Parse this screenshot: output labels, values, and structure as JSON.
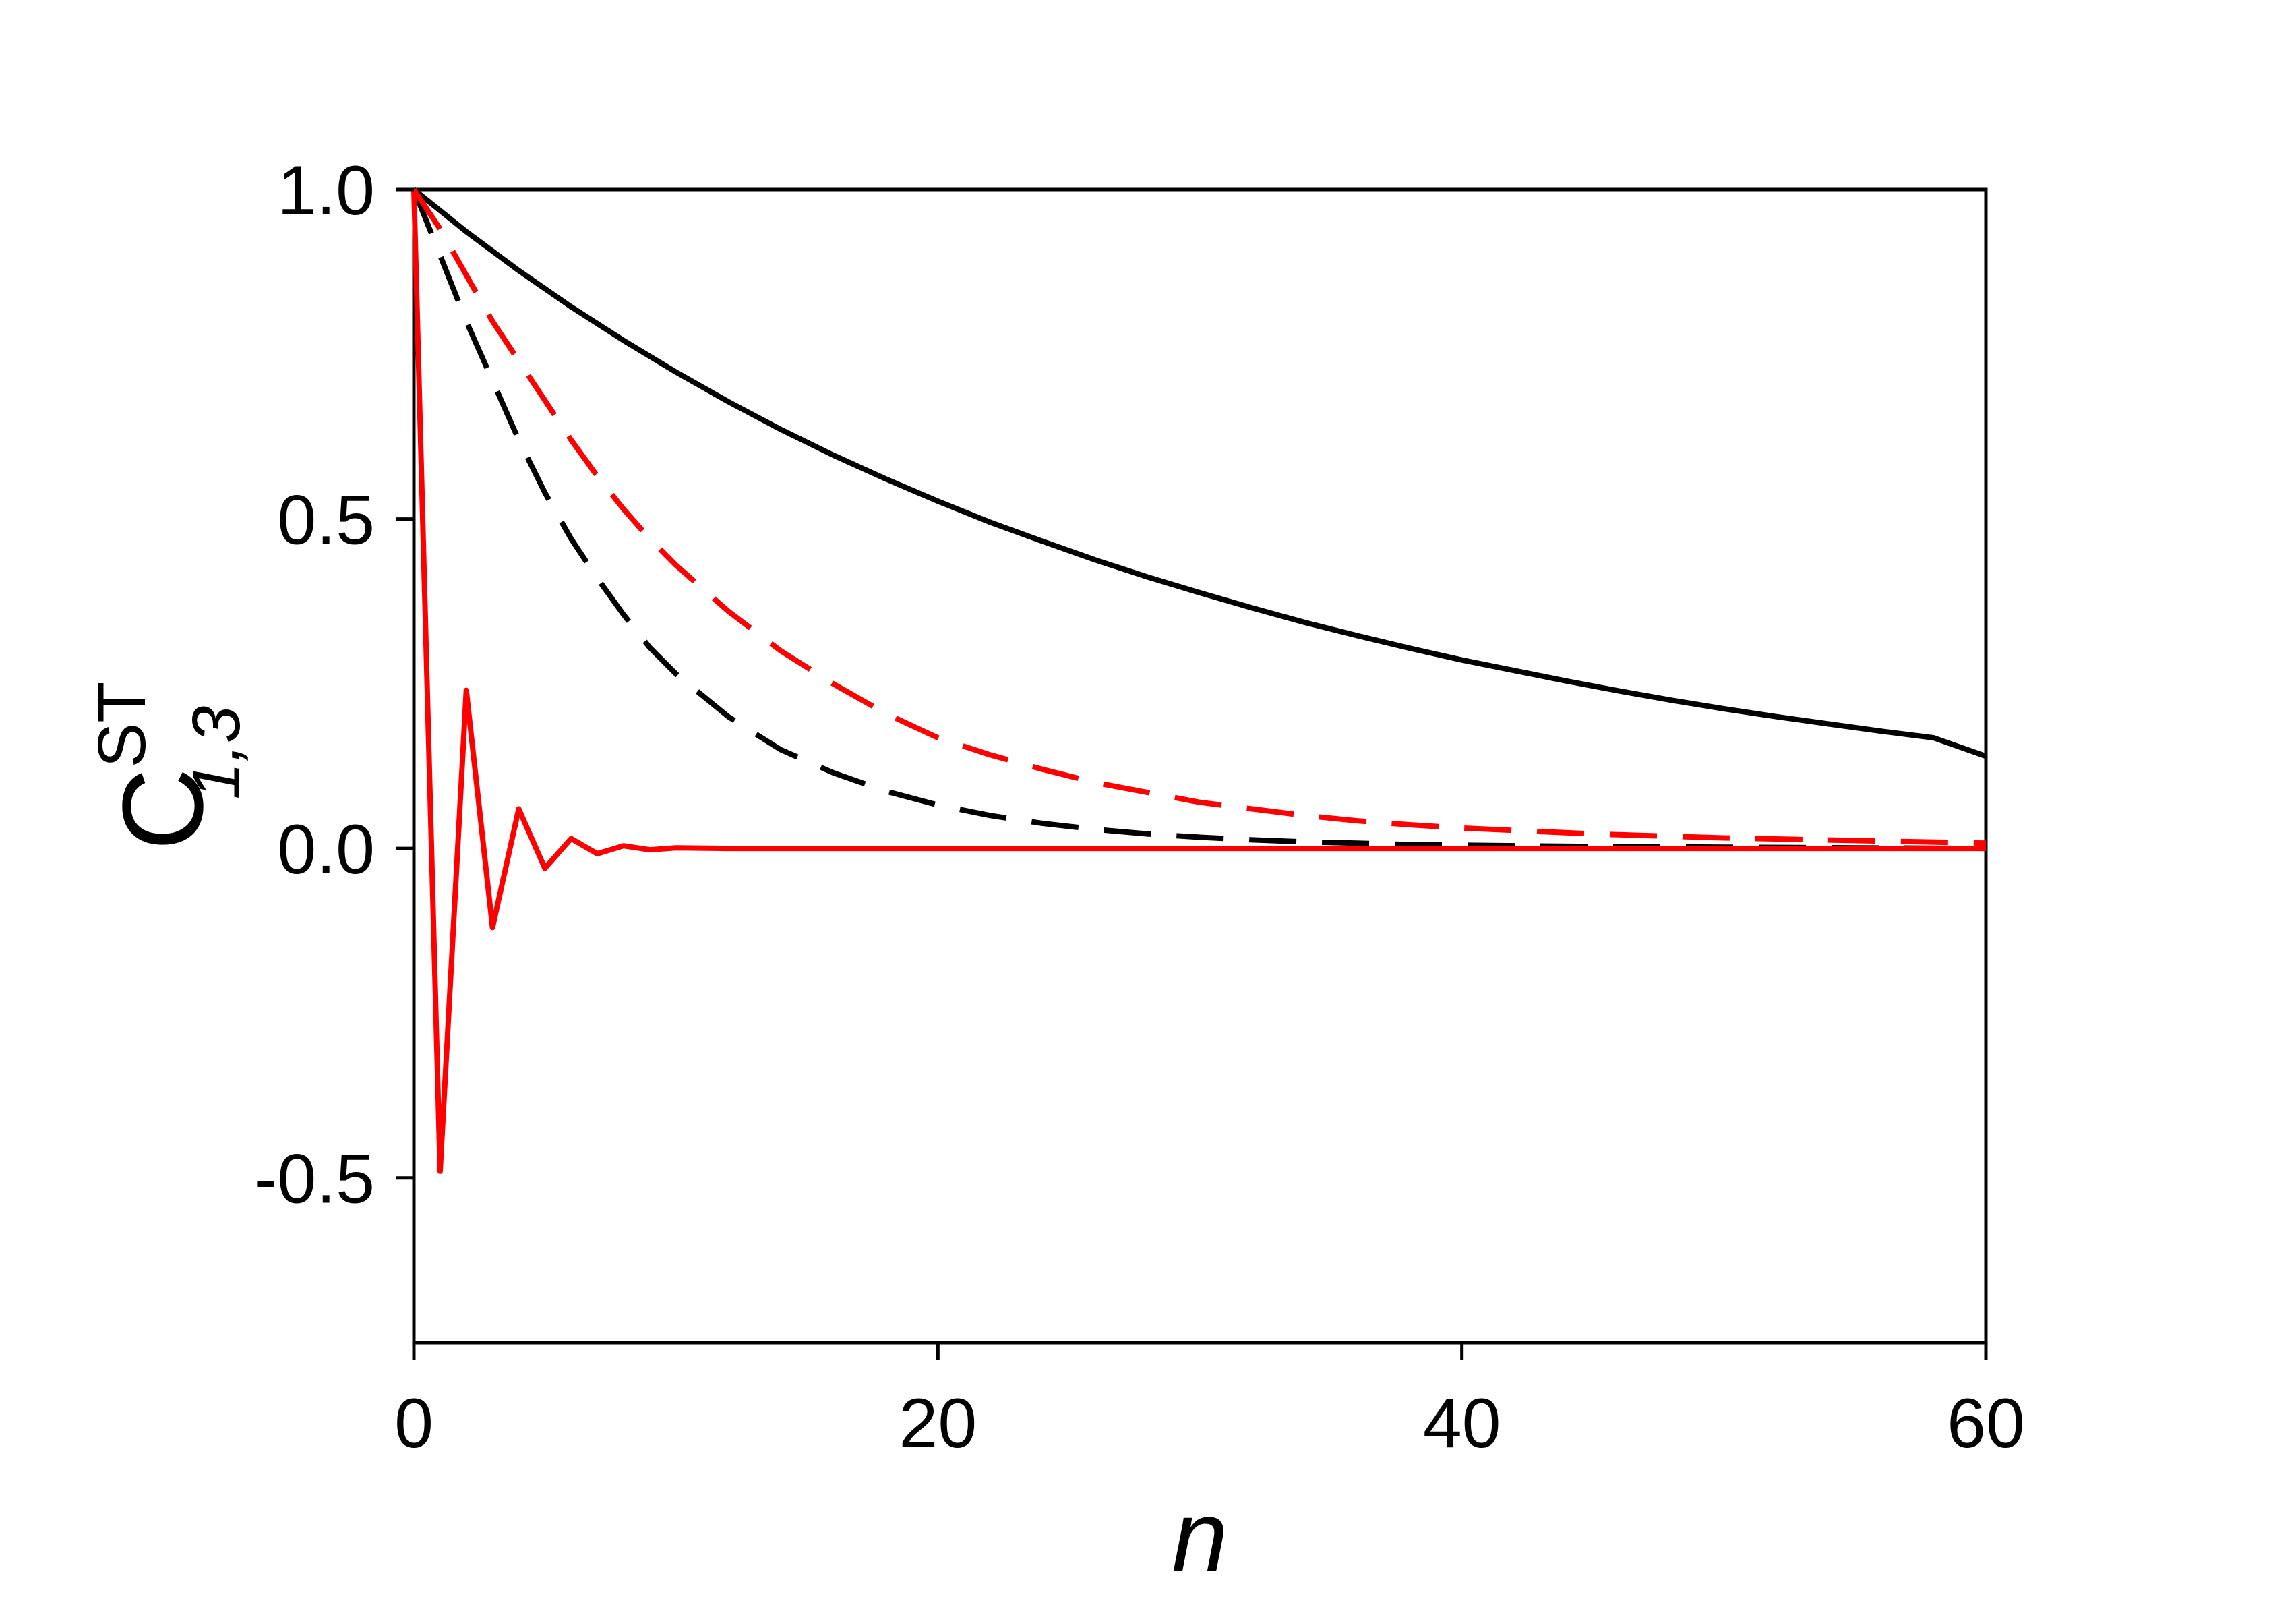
{
  "chart_data": {
    "type": "line",
    "xlabel": "n",
    "ylabel": {
      "base": "C",
      "sup": "ST",
      "sub": "1,3"
    },
    "xlim": [
      0,
      60
    ],
    "ylim": [
      -0.75,
      1.0
    ],
    "xticks": [
      0,
      20,
      40,
      60
    ],
    "xtick_labels": [
      "0",
      "20",
      "40",
      "60"
    ],
    "yticks": [
      1.0,
      0.5,
      0.0,
      -0.5
    ],
    "ytick_labels": [
      "1.0",
      "0.5",
      "0.0",
      "-0.5"
    ],
    "grid": false,
    "legend": "none",
    "series": [
      {
        "color": "#000000",
        "style": "solid",
        "x": [
          0,
          2,
          4,
          6,
          8,
          10,
          12,
          14,
          16,
          18,
          20,
          22,
          24,
          26,
          28,
          30,
          32,
          34,
          36,
          38,
          40,
          42,
          44,
          46,
          48,
          50,
          52,
          54,
          56,
          58,
          60
        ],
        "y": [
          1.0,
          0.936,
          0.877,
          0.822,
          0.771,
          0.723,
          0.678,
          0.636,
          0.597,
          0.561,
          0.527,
          0.495,
          0.466,
          0.438,
          0.412,
          0.388,
          0.365,
          0.343,
          0.323,
          0.304,
          0.286,
          0.27,
          0.254,
          0.239,
          0.225,
          0.212,
          0.2,
          0.189,
          0.178,
          0.168,
          0.14
        ]
      },
      {
        "color": "#000000",
        "style": "dashed",
        "x": [
          0,
          1,
          2,
          3,
          4,
          5,
          6,
          7,
          8,
          9,
          10,
          12,
          14,
          16,
          18,
          20,
          22,
          24,
          26,
          28,
          30,
          32,
          34,
          36,
          38,
          40,
          45,
          50,
          55,
          60
        ],
        "y": [
          1.0,
          0.9,
          0.8,
          0.71,
          0.62,
          0.54,
          0.47,
          0.41,
          0.355,
          0.305,
          0.265,
          0.2,
          0.15,
          0.115,
          0.087,
          0.066,
          0.05,
          0.038,
          0.029,
          0.022,
          0.017,
          0.013,
          0.01,
          0.008,
          0.006,
          0.005,
          0.003,
          0.002,
          0.001,
          0.0
        ]
      },
      {
        "color": "#ff0000",
        "style": "dashed",
        "x": [
          0,
          1,
          2,
          3,
          4,
          5,
          6,
          7,
          8,
          9,
          10,
          12,
          14,
          16,
          18,
          20,
          22,
          24,
          26,
          28,
          30,
          32,
          34,
          36,
          38,
          40,
          45,
          50,
          55,
          60
        ],
        "y": [
          1.0,
          0.94,
          0.87,
          0.8,
          0.74,
          0.68,
          0.62,
          0.565,
          0.515,
          0.47,
          0.43,
          0.36,
          0.3,
          0.25,
          0.205,
          0.168,
          0.142,
          0.12,
          0.1,
          0.085,
          0.07,
          0.06,
          0.05,
          0.042,
          0.036,
          0.031,
          0.022,
          0.016,
          0.012,
          0.008
        ]
      },
      {
        "color": "#ff0000",
        "style": "solid",
        "x": [
          0,
          1,
          2,
          3,
          4,
          5,
          6,
          7,
          8,
          9,
          10,
          12,
          14,
          16,
          20,
          30,
          40,
          50,
          60
        ],
        "y": [
          1.0,
          -0.49,
          0.24,
          -0.12,
          0.06,
          -0.03,
          0.015,
          -0.008,
          0.004,
          -0.002,
          0.001,
          0.0,
          0.0,
          0.0,
          0.0,
          0.0,
          0.0,
          0.0,
          0.0
        ]
      }
    ]
  }
}
